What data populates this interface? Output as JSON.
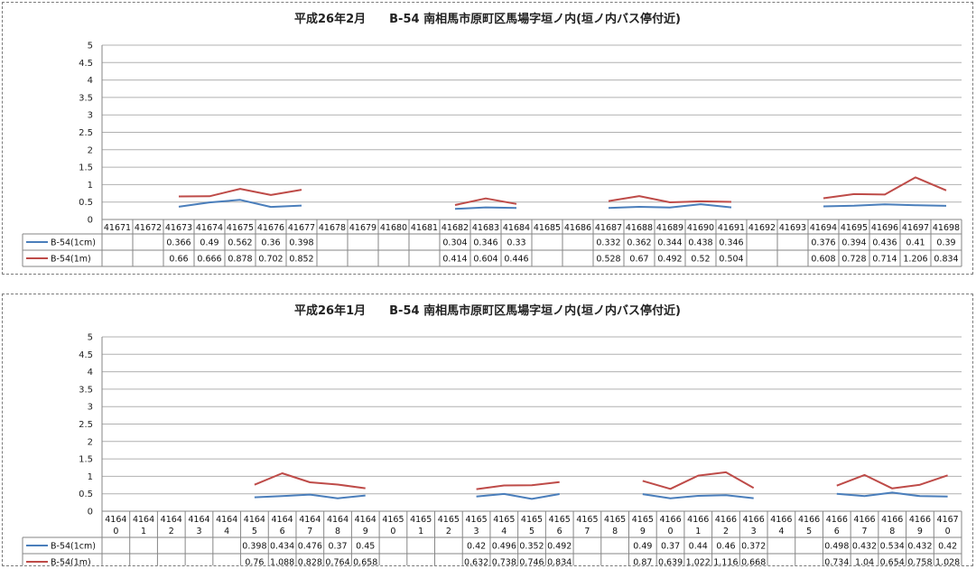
{
  "chart_data": [
    {
      "type": "line",
      "title": "平成26年2月　　B-54 南相馬市原町区馬場字垣ノ内(垣ノ内バス停付近)",
      "ylim": [
        0,
        5
      ],
      "yticks": [
        "0",
        "0.5",
        "1",
        "1.5",
        "2",
        "2.5",
        "3",
        "3.5",
        "4",
        "4.5",
        "5"
      ],
      "grid": true,
      "legend": "table-left",
      "categories": [
        "41671",
        "41672",
        "41673",
        "41674",
        "41675",
        "41676",
        "41677",
        "41678",
        "41679",
        "41680",
        "41681",
        "41682",
        "41683",
        "41684",
        "41685",
        "41686",
        "41687",
        "41688",
        "41689",
        "41690",
        "41691",
        "41692",
        "41693",
        "41694",
        "41695",
        "41696",
        "41697",
        "41698"
      ],
      "series": [
        {
          "name": "B-54(1cm)",
          "color": "#4a7ebb",
          "values": [
            null,
            null,
            0.366,
            0.49,
            0.562,
            0.36,
            0.398,
            null,
            null,
            null,
            null,
            0.304,
            0.346,
            0.33,
            null,
            null,
            0.332,
            0.362,
            0.344,
            0.438,
            0.346,
            null,
            null,
            0.376,
            0.394,
            0.436,
            0.41,
            0.39
          ]
        },
        {
          "name": "B-54(1m)",
          "color": "#be4b48",
          "values": [
            null,
            null,
            0.66,
            0.666,
            0.878,
            0.702,
            0.852,
            null,
            null,
            null,
            null,
            0.414,
            0.604,
            0.446,
            null,
            null,
            0.528,
            0.67,
            0.492,
            0.52,
            0.504,
            null,
            null,
            0.608,
            0.728,
            0.714,
            1.206,
            0.834
          ]
        }
      ]
    },
    {
      "type": "line",
      "title": "平成26年1月　　B-54 南相馬市原町区馬場字垣ノ内(垣ノ内バス停付近)",
      "ylim": [
        0,
        5
      ],
      "yticks": [
        "0",
        "0.5",
        "1",
        "1.5",
        "2",
        "2.5",
        "3",
        "3.5",
        "4",
        "4.5",
        "5"
      ],
      "grid": true,
      "legend": "table-left",
      "categories": [
        "41640",
        "41641",
        "41642",
        "41643",
        "41644",
        "41645",
        "41646",
        "41647",
        "41648",
        "41649",
        "41650",
        "41651",
        "41652",
        "41653",
        "41654",
        "41655",
        "41656",
        "41657",
        "41658",
        "41659",
        "41660",
        "41661",
        "41662",
        "41663",
        "41664",
        "41665",
        "41666",
        "41667",
        "41668",
        "41669",
        "41670"
      ],
      "series": [
        {
          "name": "B-54(1cm)",
          "color": "#4a7ebb",
          "values": [
            null,
            null,
            null,
            null,
            null,
            0.398,
            0.434,
            0.476,
            0.37,
            0.45,
            null,
            null,
            null,
            0.42,
            0.496,
            0.352,
            0.492,
            null,
            null,
            0.49,
            0.37,
            0.44,
            0.46,
            0.372,
            null,
            null,
            0.498,
            0.432,
            0.534,
            0.432,
            0.42
          ]
        },
        {
          "name": "B-54(1m)",
          "color": "#be4b48",
          "values": [
            null,
            null,
            null,
            null,
            null,
            0.76,
            1.088,
            0.828,
            0.764,
            0.658,
            null,
            null,
            null,
            0.632,
            0.738,
            0.746,
            0.834,
            null,
            null,
            0.87,
            0.639,
            1.022,
            1.116,
            0.668,
            null,
            null,
            0.734,
            1.04,
            0.654,
            0.758,
            1.028
          ]
        }
      ]
    }
  ]
}
